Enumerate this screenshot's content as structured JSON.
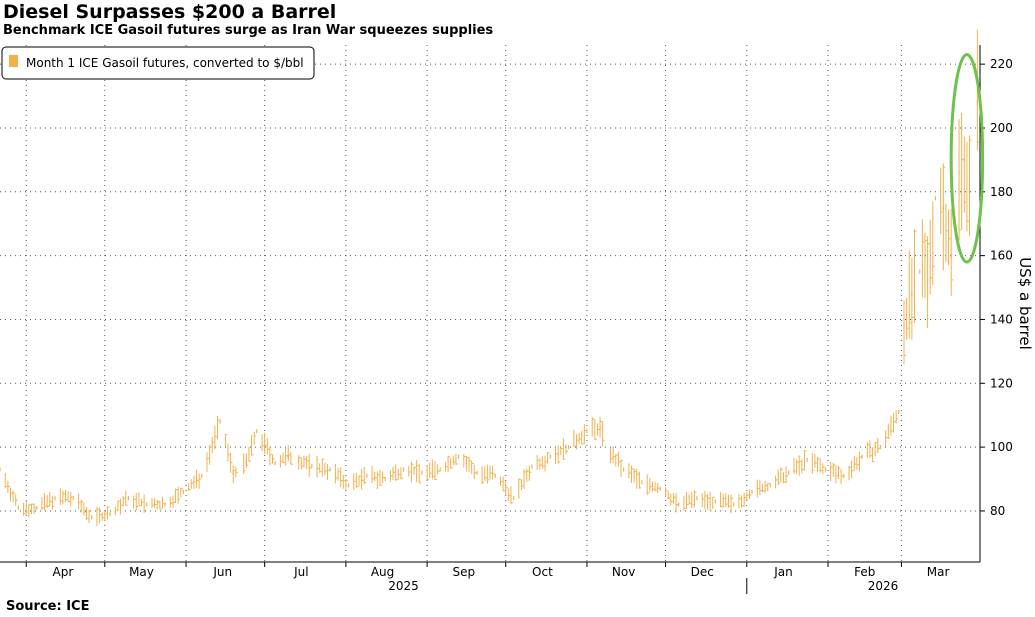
{
  "header": {
    "title": "Diesel Surpasses $200 a Barrel",
    "subtitle": "Benchmark ICE Gasoil futures surge as Iran War squeezes supplies"
  },
  "footer": {
    "source": "Source: ICE"
  },
  "colors": {
    "series": "#f0b04c",
    "highlight": "#6cc24a",
    "grid": "#555555",
    "axis": "#000000"
  },
  "chart_data": {
    "type": "line",
    "title": "Diesel Surpasses $200 a Barrel",
    "subtitle": "Benchmark ICE Gasoil futures surge as Iran War squeezes supplies",
    "ylabel": "US$ a barrel",
    "xlabel": "",
    "ylim": [
      64,
      226
    ],
    "y_ticks": [
      80,
      100,
      120,
      140,
      160,
      180,
      200,
      220
    ],
    "y_axis_side": "right",
    "grid": true,
    "x_range": [
      "2025-03-22",
      "2026-03-31"
    ],
    "month_ticks": [
      {
        "label": "Apr",
        "date": "2025-04-15"
      },
      {
        "label": "May",
        "date": "2025-05-15"
      },
      {
        "label": "Jun",
        "date": "2025-06-15"
      },
      {
        "label": "Jul",
        "date": "2025-07-15"
      },
      {
        "label": "Aug",
        "date": "2025-08-15"
      },
      {
        "label": "Sep",
        "date": "2025-09-15"
      },
      {
        "label": "Oct",
        "date": "2025-10-15"
      },
      {
        "label": "Nov",
        "date": "2025-11-15"
      },
      {
        "label": "Dec",
        "date": "2025-12-15"
      },
      {
        "label": "Jan",
        "date": "2026-01-15"
      },
      {
        "label": "Feb",
        "date": "2026-02-15"
      },
      {
        "label": "Mar",
        "date": "2026-03-15"
      }
    ],
    "year_labels": [
      {
        "label": "2025",
        "date": "2025-08-23"
      },
      {
        "label": "2026",
        "date": "2026-02-22"
      }
    ],
    "year_divider_date": "2026-01-01",
    "legend": {
      "placement": "top-left",
      "entries": [
        "Month 1 ICE Gasoil futures, converted to $/bbl"
      ]
    },
    "annotation": {
      "shape": "ellipse",
      "date_range": [
        "2026-03-20",
        "2026-04-01"
      ],
      "value_range": [
        158,
        223
      ]
    },
    "series": [
      {
        "name": "Month 1 ICE Gasoil futures, converted to $/bbl",
        "x": [
          "2025-03-22",
          "2025-03-29",
          "2025-04-05",
          "2025-04-12",
          "2025-04-19",
          "2025-04-26",
          "2025-05-03",
          "2025-05-10",
          "2025-05-17",
          "2025-05-24",
          "2025-05-31",
          "2025-06-07",
          "2025-06-14",
          "2025-06-19",
          "2025-06-24",
          "2025-06-28",
          "2025-07-05",
          "2025-07-10",
          "2025-07-14",
          "2025-07-19",
          "2025-07-26",
          "2025-08-02",
          "2025-08-09",
          "2025-08-16",
          "2025-08-23",
          "2025-08-30",
          "2025-09-06",
          "2025-09-13",
          "2025-09-20",
          "2025-09-27",
          "2025-10-04",
          "2025-10-11",
          "2025-10-18",
          "2025-10-25",
          "2025-11-01",
          "2025-11-06",
          "2025-11-10",
          "2025-11-15",
          "2025-11-22",
          "2025-11-29",
          "2025-12-06",
          "2025-12-13",
          "2025-12-20",
          "2025-12-27",
          "2026-01-03",
          "2026-01-10",
          "2026-01-17",
          "2026-01-24",
          "2026-01-31",
          "2026-02-07",
          "2026-02-14",
          "2026-02-21",
          "2026-02-28",
          "2026-03-02",
          "2026-03-05",
          "2026-03-08",
          "2026-03-11",
          "2026-03-14",
          "2026-03-17",
          "2026-03-20",
          "2026-03-23",
          "2026-03-25",
          "2026-03-27",
          "2026-03-30"
        ],
        "values": [
          93,
          81,
          81,
          84,
          84,
          78,
          79,
          84,
          82,
          82,
          86,
          91,
          108,
          92,
          95,
          105,
          95,
          97,
          96,
          94,
          93,
          88,
          91,
          90,
          93,
          92,
          93,
          97,
          92,
          91,
          84,
          94,
          97,
          100,
          105,
          106,
          98,
          93,
          89,
          87,
          82,
          84,
          83,
          82,
          86,
          88,
          92,
          96,
          93,
          91,
          97,
          100,
          111,
          138,
          148,
          155,
          152,
          178,
          175,
          160,
          186,
          190,
          180,
          208
        ]
      }
    ]
  }
}
